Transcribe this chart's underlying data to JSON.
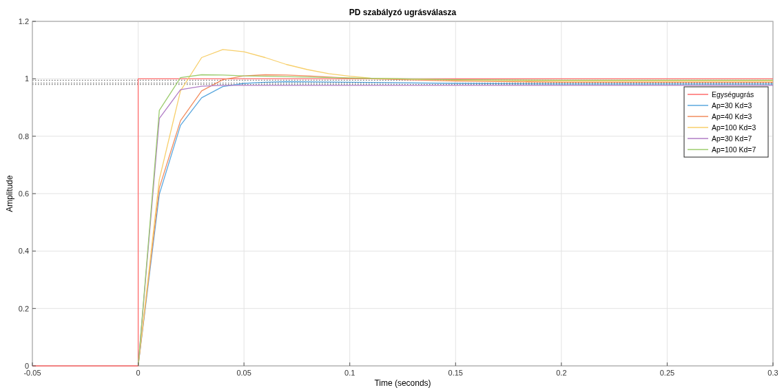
{
  "chart_data": {
    "type": "line",
    "title": "PD szabályzó ugrásválasza",
    "xlabel": "Time (seconds)",
    "ylabel": "Amplitude",
    "xlim": [
      -0.05,
      0.3
    ],
    "xticks": [
      -0.05,
      0,
      0.05,
      0.1,
      0.15,
      0.2,
      0.25,
      0.3
    ],
    "ylim": [
      0,
      1.2
    ],
    "yticks": [
      0,
      0.2,
      0.4,
      0.6,
      0.8,
      1,
      1.2
    ],
    "grid": true,
    "legend": "top right",
    "line_style": "solid",
    "ref_lines": [
      {
        "axis": "y",
        "value": 0.995,
        "color": "#555555",
        "line_style": "dotted"
      },
      {
        "axis": "y",
        "value": 0.985,
        "color": "#555555",
        "line_style": "dotted"
      },
      {
        "axis": "y",
        "value": 0.98,
        "color": "#555555",
        "line_style": "dotted"
      }
    ],
    "series": [
      {
        "name": "Egységugrás",
        "color": "#ff6b6b",
        "x": [
          -0.05,
          0,
          0,
          0.3
        ],
        "values": [
          0,
          0,
          1,
          1
        ]
      },
      {
        "name": "Ap=30 Kd=3",
        "color": "#5aa7de",
        "x": [
          0,
          0.01,
          0.02,
          0.03,
          0.04,
          0.05,
          0.06,
          0.07,
          0.1,
          0.15,
          0.2,
          0.3
        ],
        "values": [
          0,
          0.598,
          0.838,
          0.934,
          0.973,
          0.984,
          0.988,
          0.99,
          0.988,
          0.984,
          0.982,
          0.982
        ]
      },
      {
        "name": "Ap=40 Kd=3",
        "color": "#f28c5e",
        "x": [
          0,
          0.01,
          0.02,
          0.03,
          0.04,
          0.05,
          0.06,
          0.07,
          0.08,
          0.1,
          0.15,
          0.2,
          0.3
        ],
        "values": [
          0,
          0.62,
          0.854,
          0.958,
          0.997,
          1.01,
          1.014,
          1.013,
          1.01,
          1.002,
          0.992,
          0.988,
          0.988
        ]
      },
      {
        "name": "Ap=100 Kd=3",
        "color": "#f7cf6b",
        "x": [
          0,
          0.01,
          0.02,
          0.03,
          0.04,
          0.05,
          0.06,
          0.07,
          0.08,
          0.09,
          0.1,
          0.11,
          0.15,
          0.2,
          0.3
        ],
        "values": [
          0,
          0.65,
          0.958,
          1.074,
          1.102,
          1.094,
          1.074,
          1.05,
          1.032,
          1.018,
          1.009,
          1.002,
          0.995,
          0.992,
          0.992
        ]
      },
      {
        "name": "Ap=30 Kd=7",
        "color": "#b07cc6",
        "x": [
          0,
          0.01,
          0.02,
          0.03,
          0.04,
          0.05,
          0.1,
          0.2,
          0.3
        ],
        "values": [
          0,
          0.862,
          0.962,
          0.974,
          0.977,
          0.977,
          0.977,
          0.977,
          0.977
        ]
      },
      {
        "name": "Ap=100 Kd=7",
        "color": "#9ccc6e",
        "x": [
          0,
          0.01,
          0.02,
          0.03,
          0.04,
          0.05,
          0.06,
          0.1,
          0.15,
          0.2,
          0.3
        ],
        "values": [
          0,
          0.89,
          1.004,
          1.014,
          1.013,
          1.01,
          1.009,
          1.003,
          0.997,
          0.995,
          0.995
        ]
      }
    ]
  }
}
